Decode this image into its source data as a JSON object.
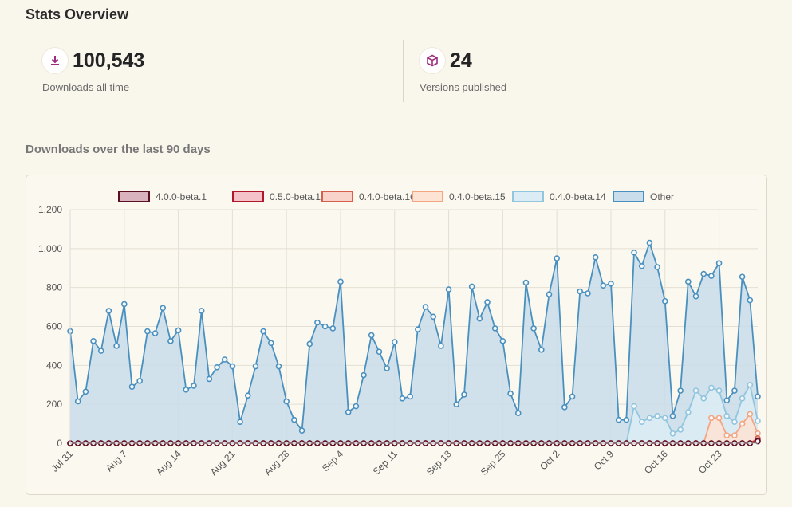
{
  "header": {
    "title": "Stats Overview"
  },
  "stats": [
    {
      "value": "100,543",
      "label": "Downloads all time",
      "icon": "download-icon"
    },
    {
      "value": "24",
      "label": "Versions published",
      "icon": "package-icon"
    }
  ],
  "section": {
    "title": "Downloads over the last 90 days"
  },
  "colors": {
    "accent": "#9c2c7f",
    "other_fill": "#c9ddea",
    "other_line": "#4a90bf"
  },
  "chart_data": {
    "type": "area",
    "title": "",
    "xlabel": "",
    "ylabel": "",
    "ylim": [
      0,
      1200
    ],
    "yticks": [
      "0",
      "200",
      "400",
      "600",
      "800",
      "1,000",
      "1,200"
    ],
    "grid": true,
    "legend_position": "top",
    "xtick_labels": [
      "Jul 31",
      "Aug 7",
      "Aug 14",
      "Aug 21",
      "Aug 28",
      "Sep 4",
      "Sep 11",
      "Sep 18",
      "Sep 25",
      "Oct 2",
      "Oct 9",
      "Oct 16",
      "Oct 23"
    ],
    "series": [
      {
        "name": "4.0.0-beta.1",
        "stroke": "#5a0f23",
        "fill": "#d9b4bf",
        "values": [
          0,
          0,
          0,
          0,
          0,
          0,
          0,
          0,
          0,
          0,
          0,
          0,
          0,
          0,
          0,
          0,
          0,
          0,
          0,
          0,
          0,
          0,
          0,
          0,
          0,
          0,
          0,
          0,
          0,
          0,
          0,
          0,
          0,
          0,
          0,
          0,
          0,
          0,
          0,
          0,
          0,
          0,
          0,
          0,
          0,
          0,
          0,
          0,
          0,
          0,
          0,
          0,
          0,
          0,
          0,
          0,
          0,
          0,
          0,
          0,
          0,
          0,
          0,
          0,
          0,
          0,
          0,
          0,
          0,
          0,
          0,
          0,
          0,
          0,
          0,
          0,
          0,
          0,
          0,
          0,
          0,
          0,
          0,
          0,
          0,
          0,
          0,
          0,
          0,
          10
        ]
      },
      {
        "name": "0.5.0-beta.1",
        "stroke": "#b2182b",
        "fill": "#f4c2c8",
        "values": [
          0,
          0,
          0,
          0,
          0,
          0,
          0,
          0,
          0,
          0,
          0,
          0,
          0,
          0,
          0,
          0,
          0,
          0,
          0,
          0,
          0,
          0,
          0,
          0,
          0,
          0,
          0,
          0,
          0,
          0,
          0,
          0,
          0,
          0,
          0,
          0,
          0,
          0,
          0,
          0,
          0,
          0,
          0,
          0,
          0,
          0,
          0,
          0,
          0,
          0,
          0,
          0,
          0,
          0,
          0,
          0,
          0,
          0,
          0,
          0,
          0,
          0,
          0,
          0,
          0,
          0,
          0,
          0,
          0,
          0,
          0,
          0,
          0,
          0,
          0,
          0,
          0,
          0,
          0,
          0,
          0,
          0,
          0,
          0,
          0,
          0,
          0,
          0,
          0,
          15
        ]
      },
      {
        "name": "0.4.0-beta.16",
        "stroke": "#d6604d",
        "fill": "#f9d2c9",
        "values": [
          0,
          0,
          0,
          0,
          0,
          0,
          0,
          0,
          0,
          0,
          0,
          0,
          0,
          0,
          0,
          0,
          0,
          0,
          0,
          0,
          0,
          0,
          0,
          0,
          0,
          0,
          0,
          0,
          0,
          0,
          0,
          0,
          0,
          0,
          0,
          0,
          0,
          0,
          0,
          0,
          0,
          0,
          0,
          0,
          0,
          0,
          0,
          0,
          0,
          0,
          0,
          0,
          0,
          0,
          0,
          0,
          0,
          0,
          0,
          0,
          0,
          0,
          0,
          0,
          0,
          0,
          0,
          0,
          0,
          0,
          0,
          0,
          0,
          0,
          0,
          0,
          0,
          0,
          0,
          0,
          0,
          0,
          0,
          0,
          0,
          0,
          0,
          0,
          0,
          25
        ]
      },
      {
        "name": "0.4.0-beta.15",
        "stroke": "#f4a582",
        "fill": "#fde3d3",
        "values": [
          0,
          0,
          0,
          0,
          0,
          0,
          0,
          0,
          0,
          0,
          0,
          0,
          0,
          0,
          0,
          0,
          0,
          0,
          0,
          0,
          0,
          0,
          0,
          0,
          0,
          0,
          0,
          0,
          0,
          0,
          0,
          0,
          0,
          0,
          0,
          0,
          0,
          0,
          0,
          0,
          0,
          0,
          0,
          0,
          0,
          0,
          0,
          0,
          0,
          0,
          0,
          0,
          0,
          0,
          0,
          0,
          0,
          0,
          0,
          0,
          0,
          0,
          0,
          0,
          0,
          0,
          0,
          0,
          0,
          0,
          0,
          0,
          0,
          0,
          0,
          0,
          0,
          0,
          0,
          0,
          130,
          130,
          40,
          40,
          100,
          150,
          50
        ]
      },
      {
        "name": "0.4.0-beta.14",
        "stroke": "#92c5de",
        "fill": "#dcecf4",
        "values": [
          0,
          0,
          0,
          0,
          0,
          0,
          0,
          0,
          0,
          0,
          0,
          0,
          0,
          0,
          0,
          0,
          0,
          0,
          0,
          0,
          0,
          0,
          0,
          0,
          0,
          0,
          0,
          0,
          0,
          0,
          0,
          0,
          0,
          0,
          0,
          0,
          0,
          0,
          0,
          0,
          0,
          0,
          0,
          0,
          0,
          0,
          0,
          0,
          0,
          0,
          0,
          0,
          0,
          0,
          0,
          0,
          0,
          0,
          0,
          0,
          0,
          0,
          0,
          0,
          0,
          0,
          0,
          0,
          0,
          0,
          0,
          0,
          0,
          190,
          110,
          130,
          140,
          130,
          50,
          70,
          160,
          270,
          230,
          285,
          270,
          140,
          110,
          230,
          300,
          115
        ]
      },
      {
        "name": "Other",
        "stroke": "#4a90bf",
        "fill": "#c9ddea",
        "values": [
          575,
          215,
          265,
          525,
          475,
          680,
          500,
          715,
          290,
          320,
          575,
          565,
          695,
          525,
          580,
          275,
          295,
          680,
          330,
          390,
          430,
          395,
          110,
          245,
          395,
          575,
          515,
          395,
          215,
          120,
          65,
          510,
          620,
          600,
          590,
          830,
          160,
          190,
          350,
          555,
          470,
          385,
          520,
          230,
          240,
          585,
          700,
          650,
          500,
          790,
          200,
          250,
          805,
          640,
          725,
          590,
          525,
          255,
          155,
          825,
          590,
          480,
          765,
          950,
          185,
          240,
          780,
          770,
          955,
          810,
          820,
          120,
          120,
          980,
          910,
          1030,
          905,
          730,
          140,
          270,
          830,
          755,
          870,
          860,
          925,
          220,
          270,
          855,
          735,
          240
        ]
      }
    ]
  }
}
